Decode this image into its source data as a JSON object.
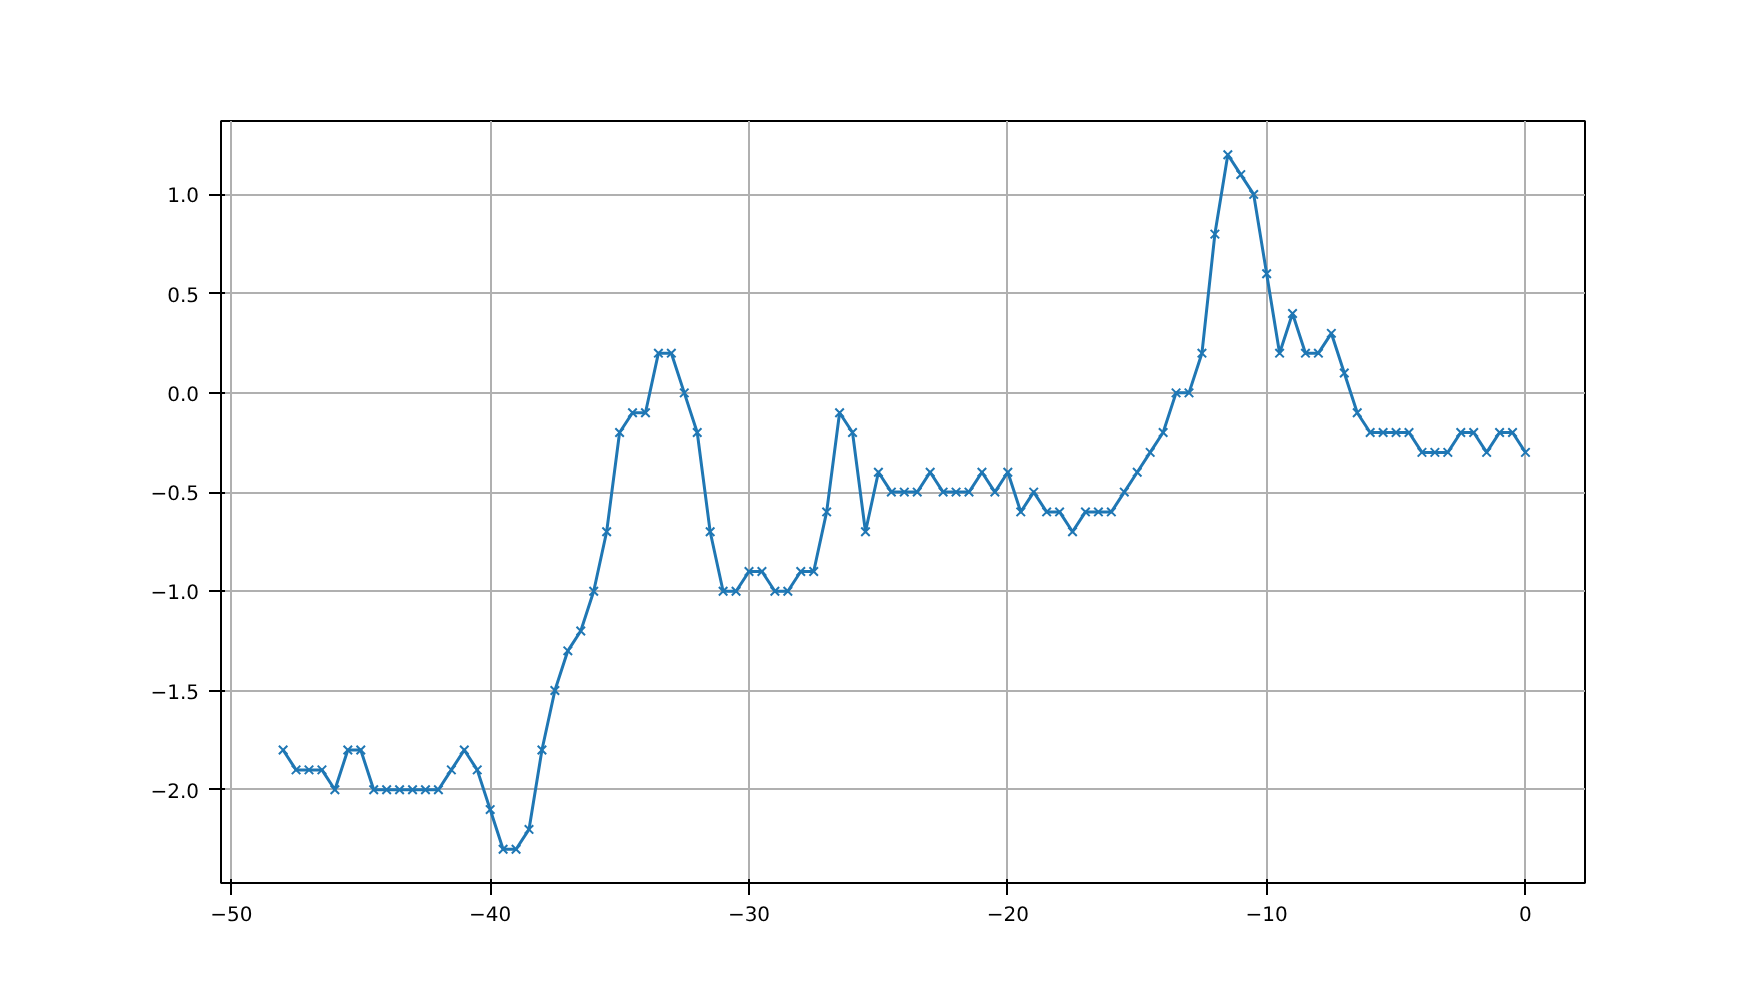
{
  "chart_data": {
    "type": "line",
    "marker": "cross",
    "grid": true,
    "xlim": [
      -50.4,
      2.3
    ],
    "ylim": [
      -2.47,
      1.37
    ],
    "xticks": [
      {
        "value": -50,
        "label": "−50"
      },
      {
        "value": -40,
        "label": "−40"
      },
      {
        "value": -30,
        "label": "−30"
      },
      {
        "value": -20,
        "label": "−20"
      },
      {
        "value": -10,
        "label": "−10"
      },
      0
    ],
    "yticks": [
      {
        "value": -2,
        "label": "−2.0"
      },
      {
        "value": -1.5,
        "label": "−1.5"
      },
      {
        "value": -1,
        "label": "−1.0"
      },
      {
        "value": -0.5,
        "label": "−0.5"
      },
      {
        "value": 0,
        "label": "0.0"
      },
      {
        "value": 0.5,
        "label": "0.5"
      },
      {
        "value": 1,
        "label": "1.0"
      }
    ],
    "x": [
      -48,
      -47.5,
      -47,
      -46.5,
      -46,
      -45.5,
      -45,
      -44.5,
      -44,
      -43.5,
      -43,
      -42.5,
      -42,
      -41.5,
      -41,
      -40.5,
      -40,
      -39.5,
      -39,
      -38.5,
      -38,
      -37.5,
      -37,
      -36.5,
      -36,
      -35.5,
      -35,
      -34.5,
      -34,
      -33.5,
      -33,
      -32.5,
      -32,
      -31.5,
      -31,
      -30.5,
      -30,
      -29.5,
      -29,
      -28.5,
      -28,
      -27.5,
      -27,
      -26.5,
      -26,
      -25.5,
      -25,
      -24.5,
      -24,
      -23.5,
      -23,
      -22.5,
      -22,
      -21.5,
      -21,
      -20.5,
      -20,
      -19.5,
      -19,
      -18.5,
      -18,
      -17.5,
      -17,
      -16.5,
      -16,
      -15.5,
      -15,
      -14.5,
      -14,
      -13.5,
      -13,
      -12.5,
      -12,
      -11.5,
      -11,
      -10.5,
      -10,
      -9.5,
      -9,
      -8.5,
      -8,
      -7.5,
      -7,
      -6.5,
      -6,
      -5.5,
      -5,
      -4.5,
      -4,
      -3.5,
      -3,
      -2.5,
      -2,
      -1.5,
      -1,
      -0.5,
      0
    ],
    "series": [
      {
        "color": "#1f77b4",
        "values": [
          -1.8,
          -1.9,
          -1.9,
          -1.9,
          -2.0,
          -1.8,
          -1.8,
          -2.0,
          -2.0,
          -2.0,
          -2.0,
          -2.0,
          -2.0,
          -1.9,
          -1.8,
          -1.9,
          -2.1,
          -2.3,
          -2.3,
          -2.2,
          -1.8,
          -1.5,
          -1.3,
          -1.2,
          -1.0,
          -0.7,
          -0.2,
          -0.1,
          -0.1,
          0.2,
          0.2,
          0.0,
          -0.2,
          -0.7,
          -1.0,
          -1.0,
          -0.9,
          -0.9,
          -1.0,
          -1.0,
          -0.9,
          -0.9,
          -0.6,
          -0.1,
          -0.2,
          -0.7,
          -0.4,
          -0.5,
          -0.5,
          -0.5,
          -0.4,
          -0.5,
          -0.5,
          -0.5,
          -0.4,
          -0.5,
          -0.4,
          -0.6,
          -0.5,
          -0.6,
          -0.6,
          -0.7,
          -0.6,
          -0.6,
          -0.6,
          -0.5,
          -0.4,
          -0.3,
          -0.2,
          0.0,
          0.0,
          0.2,
          0.8,
          1.2,
          1.1,
          1.0,
          0.6,
          0.2,
          0.4,
          0.2,
          0.2,
          0.3,
          0.1,
          -0.1,
          -0.2,
          -0.2,
          -0.2,
          -0.2,
          -0.3,
          -0.3,
          -0.3,
          -0.2,
          -0.2,
          -0.3,
          -0.2,
          -0.2,
          -0.3
        ]
      }
    ]
  }
}
